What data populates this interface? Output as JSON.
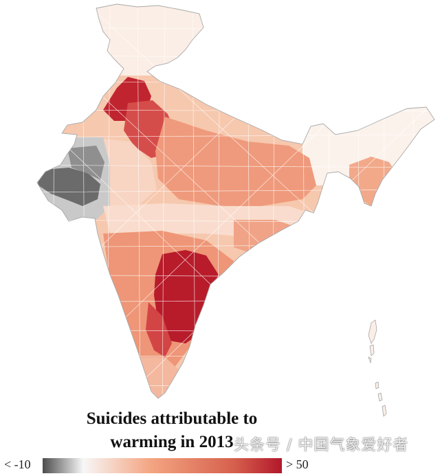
{
  "map": {
    "title_line_1": "Suicides attributable to",
    "title_line_2": "warming in 2013"
  },
  "legend": {
    "min_label": "< -10",
    "max_label": "> 50",
    "min_value": -10,
    "max_value": 50,
    "colors": {
      "low": "#4d4d4d",
      "zero": "#f7f7f7",
      "mid": "#f4a582",
      "high": "#b2182b"
    }
  },
  "watermark": {
    "text": "头条号 / 中国气象爱好者"
  },
  "colors": {
    "border": "#b8b8b8",
    "dark_red": "#b2182b",
    "red": "#d6604d",
    "salmon": "#f4a582",
    "light_salmon": "#fddbc7",
    "pale": "#fbeee6",
    "white": "#ffffff",
    "gray_dark": "#666666",
    "gray_mid": "#8f8f8f",
    "gray_light": "#c9c9c9"
  }
}
